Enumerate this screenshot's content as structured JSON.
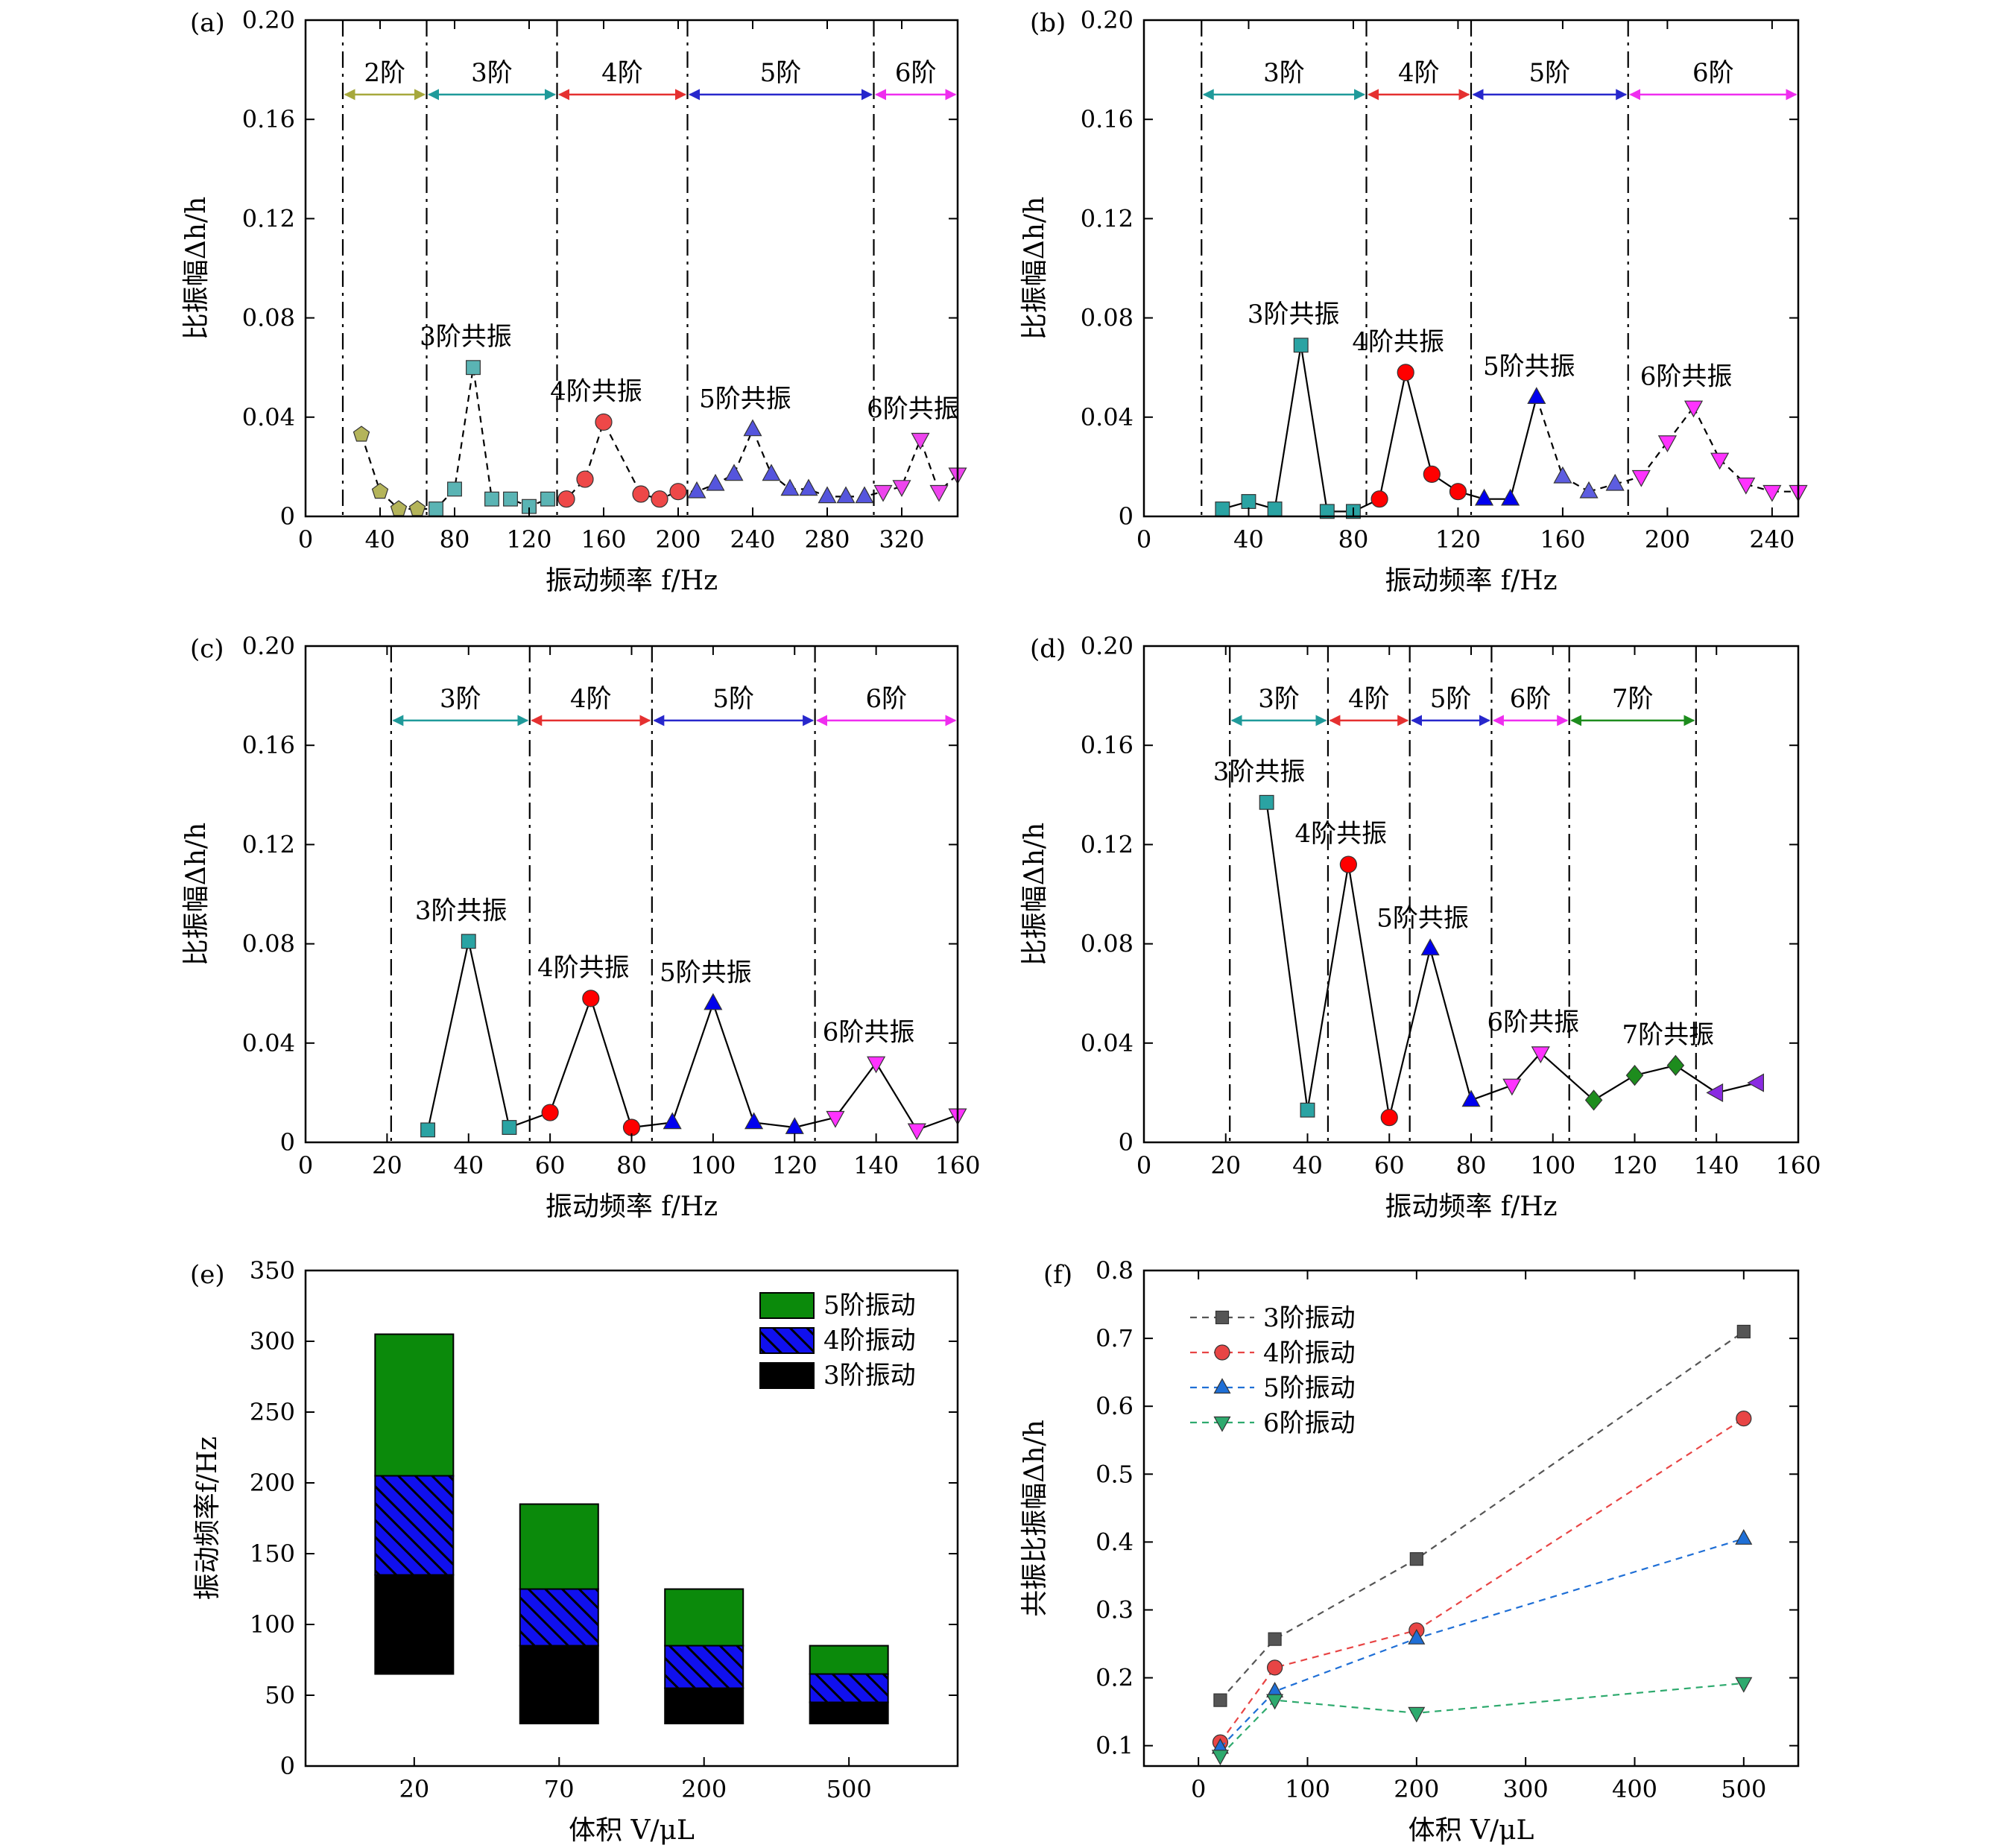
{
  "figure": {
    "panels": [
      "(a)",
      "(b)",
      "(c)",
      "(d)",
      "(e)",
      "(f)"
    ]
  },
  "chart_data": [
    {
      "panel": "(a)",
      "type": "scatter",
      "xlabel": "振动频率 f/Hz",
      "ylabel": "比振幅Δh/h",
      "xlim": [
        0,
        350
      ],
      "ylim": [
        0,
        0.2
      ],
      "xticks": [
        0,
        40,
        80,
        120,
        160,
        200,
        240,
        280,
        320
      ],
      "yticks": [
        0,
        0.04,
        0.08,
        0.12,
        0.16,
        0.2
      ],
      "ytick_labels": [
        "0",
        "0.04",
        "0.08",
        "0.12",
        "0.16",
        "0.20"
      ],
      "line_style": "dashed",
      "boundaries": [
        20,
        65,
        135,
        205,
        305
      ],
      "regions": [
        {
          "label": "2阶",
          "from": 20,
          "to": 65,
          "color": "#a6a83c"
        },
        {
          "label": "3阶",
          "from": 65,
          "to": 135,
          "color": "#1f9a9a"
        },
        {
          "label": "4阶",
          "from": 135,
          "to": 205,
          "color": "#e53030"
        },
        {
          "label": "5阶",
          "from": 205,
          "to": 305,
          "color": "#2727cc"
        },
        {
          "label": "6阶",
          "from": 305,
          "to": 350,
          "color": "#ef2def"
        }
      ],
      "series": [
        {
          "marker": "pentagon",
          "color": "#b4b45a",
          "x": [
            30,
            40,
            50,
            60
          ],
          "y": [
            0.033,
            0.01,
            0.003,
            0.003
          ]
        },
        {
          "marker": "square",
          "color": "#5ab4b4",
          "x": [
            70,
            80,
            90,
            100,
            110,
            120,
            130
          ],
          "y": [
            0.003,
            0.011,
            0.06,
            0.007,
            0.007,
            0.004,
            0.007
          ]
        },
        {
          "marker": "circle",
          "color": "#ee4848",
          "x": [
            140,
            150,
            160,
            180,
            190,
            200
          ],
          "y": [
            0.007,
            0.015,
            0.038,
            0.009,
            0.007,
            0.01
          ]
        },
        {
          "marker": "triangle-up",
          "color": "#5555dd",
          "x": [
            210,
            220,
            230,
            240,
            250,
            260,
            270,
            280,
            290,
            300
          ],
          "y": [
            0.01,
            0.013,
            0.017,
            0.035,
            0.017,
            0.011,
            0.011,
            0.008,
            0.008,
            0.008
          ]
        },
        {
          "marker": "triangle-down",
          "color": "#ee44ee",
          "x": [
            310,
            320,
            330,
            340,
            350
          ],
          "y": [
            0.01,
            0.012,
            0.031,
            0.01,
            0.017
          ]
        }
      ],
      "annotations": [
        {
          "text": "3阶共振",
          "x": 90,
          "y": 0.06
        },
        {
          "text": "4阶共振",
          "x": 160,
          "y": 0.038
        },
        {
          "text": "5阶共振",
          "x": 240,
          "y": 0.035
        },
        {
          "text": "6阶共振",
          "x": 330,
          "y": 0.031
        }
      ]
    },
    {
      "panel": "(b)",
      "type": "line",
      "xlabel": "振动频率 f/Hz",
      "ylabel": "比振幅Δh/h",
      "xlim": [
        0,
        250
      ],
      "ylim": [
        0,
        0.2
      ],
      "xticks": [
        0,
        40,
        80,
        120,
        160,
        200,
        240
      ],
      "yticks": [
        0,
        0.04,
        0.08,
        0.12,
        0.16,
        0.2
      ],
      "ytick_labels": [
        "0",
        "0.04",
        "0.08",
        "0.12",
        "0.16",
        "0.20"
      ],
      "line_style": "solid",
      "boundaries": [
        22,
        85,
        125,
        185
      ],
      "regions": [
        {
          "label": "3阶",
          "from": 22,
          "to": 85,
          "color": "#1f9a9a"
        },
        {
          "label": "4阶",
          "from": 85,
          "to": 125,
          "color": "#e53030"
        },
        {
          "label": "5阶",
          "from": 125,
          "to": 185,
          "color": "#2727cc"
        },
        {
          "label": "6阶",
          "from": 185,
          "to": 250,
          "color": "#ef2def"
        }
      ],
      "series": [
        {
          "marker": "square",
          "color": "#2aa3a3",
          "dash": false,
          "x": [
            30,
            40,
            50,
            60,
            70,
            80
          ],
          "y": [
            0.003,
            0.006,
            0.003,
            0.069,
            0.002,
            0.002
          ]
        },
        {
          "marker": "circle",
          "color": "#ff0000",
          "dash": false,
          "x": [
            90,
            100,
            110,
            120
          ],
          "y": [
            0.007,
            0.058,
            0.017,
            0.01
          ]
        },
        {
          "marker": "triangle-up",
          "color": "#0000ee",
          "dash": false,
          "x": [
            130,
            140,
            150
          ],
          "y": [
            0.007,
            0.007,
            0.048
          ]
        },
        {
          "marker": "triangle-up",
          "color": "#5d5de0",
          "dash": true,
          "x": [
            160,
            170,
            180
          ],
          "y": [
            0.016,
            0.01,
            0.013
          ]
        },
        {
          "marker": "triangle-down",
          "color": "#ff33ff",
          "dash": true,
          "x": [
            190,
            200,
            210,
            220,
            230,
            240,
            250
          ],
          "y": [
            0.016,
            0.03,
            0.044,
            0.023,
            0.013,
            0.01,
            0.01
          ]
        }
      ],
      "annotations": [
        {
          "text": "3阶共振",
          "x": 60,
          "y": 0.069
        },
        {
          "text": "4阶共振",
          "x": 100,
          "y": 0.058
        },
        {
          "text": "5阶共振",
          "x": 150,
          "y": 0.048
        },
        {
          "text": "6阶共振",
          "x": 210,
          "y": 0.044
        }
      ]
    },
    {
      "panel": "(c)",
      "type": "line",
      "xlabel": "振动频率 f/Hz",
      "ylabel": "比振幅Δh/h",
      "xlim": [
        0,
        160
      ],
      "ylim": [
        0,
        0.2
      ],
      "xticks": [
        0,
        20,
        40,
        60,
        80,
        100,
        120,
        140,
        160
      ],
      "yticks": [
        0,
        0.04,
        0.08,
        0.12,
        0.16,
        0.2
      ],
      "ytick_labels": [
        "0",
        "0.04",
        "0.08",
        "0.12",
        "0.16",
        "0.20"
      ],
      "line_style": "solid",
      "boundaries": [
        21,
        55,
        85,
        125
      ],
      "regions": [
        {
          "label": "3阶",
          "from": 21,
          "to": 55,
          "color": "#1f9a9a"
        },
        {
          "label": "4阶",
          "from": 55,
          "to": 85,
          "color": "#e53030"
        },
        {
          "label": "5阶",
          "from": 85,
          "to": 125,
          "color": "#2727cc"
        },
        {
          "label": "6阶",
          "from": 125,
          "to": 160,
          "color": "#ef2def"
        }
      ],
      "series": [
        {
          "marker": "square",
          "color": "#2aa3a3",
          "x": [
            30,
            40,
            50
          ],
          "y": [
            0.005,
            0.081,
            0.006
          ]
        },
        {
          "marker": "circle",
          "color": "#ff0000",
          "x": [
            60,
            70,
            80
          ],
          "y": [
            0.012,
            0.058,
            0.006
          ]
        },
        {
          "marker": "triangle-up",
          "color": "#0000ee",
          "x": [
            90,
            100,
            110,
            120
          ],
          "y": [
            0.008,
            0.056,
            0.008,
            0.006
          ]
        },
        {
          "marker": "triangle-down",
          "color": "#ff33ff",
          "x": [
            130,
            140,
            150,
            160
          ],
          "y": [
            0.01,
            0.032,
            0.005,
            0.011
          ]
        }
      ],
      "annotations": [
        {
          "text": "3阶共振",
          "x": 40,
          "y": 0.081
        },
        {
          "text": "4阶共振",
          "x": 70,
          "y": 0.058
        },
        {
          "text": "5阶共振",
          "x": 100,
          "y": 0.056
        },
        {
          "text": "6阶共振",
          "x": 140,
          "y": 0.032
        }
      ]
    },
    {
      "panel": "(d)",
      "type": "line",
      "xlabel": "振动频率 f/Hz",
      "ylabel": "比振幅Δh/h",
      "xlim": [
        0,
        160
      ],
      "ylim": [
        0,
        0.2
      ],
      "xticks": [
        0,
        20,
        40,
        60,
        80,
        100,
        120,
        140,
        160
      ],
      "yticks": [
        0,
        0.04,
        0.08,
        0.12,
        0.16,
        0.2
      ],
      "ytick_labels": [
        "0",
        "0.04",
        "0.08",
        "0.12",
        "0.16",
        "0.20"
      ],
      "line_style": "solid",
      "boundaries": [
        21,
        45,
        65,
        85,
        104,
        135
      ],
      "regions": [
        {
          "label": "3阶",
          "from": 21,
          "to": 45,
          "color": "#1f9a9a"
        },
        {
          "label": "4阶",
          "from": 45,
          "to": 65,
          "color": "#e53030"
        },
        {
          "label": "5阶",
          "from": 65,
          "to": 85,
          "color": "#2727cc"
        },
        {
          "label": "6阶",
          "from": 85,
          "to": 104,
          "color": "#ef2def"
        },
        {
          "label": "7阶",
          "from": 104,
          "to": 135,
          "color": "#1d8c1d"
        }
      ],
      "series": [
        {
          "marker": "square",
          "color": "#2aa3a3",
          "x": [
            30,
            40
          ],
          "y": [
            0.137,
            0.013
          ]
        },
        {
          "marker": "circle",
          "color": "#ff0000",
          "x": [
            50,
            60
          ],
          "y": [
            0.112,
            0.01
          ]
        },
        {
          "marker": "triangle-up",
          "color": "#0000ee",
          "x": [
            70,
            80
          ],
          "y": [
            0.078,
            0.017
          ]
        },
        {
          "marker": "triangle-down",
          "color": "#ff33ff",
          "x": [
            90,
            97
          ],
          "y": [
            0.023,
            0.036
          ]
        },
        {
          "marker": "diamond",
          "color": "#1d8c1d",
          "x": [
            110,
            120,
            130
          ],
          "y": [
            0.017,
            0.027,
            0.031
          ]
        },
        {
          "marker": "triangle-left",
          "color": "#8a2be2",
          "x": [
            140,
            150
          ],
          "y": [
            0.02,
            0.024
          ]
        }
      ],
      "annotations": [
        {
          "text": "3阶共振",
          "x": 30,
          "y": 0.137
        },
        {
          "text": "4阶共振",
          "x": 50,
          "y": 0.112
        },
        {
          "text": "5阶共振",
          "x": 70,
          "y": 0.078
        },
        {
          "text": "6阶共振",
          "x": 97,
          "y": 0.036
        },
        {
          "text": "7阶共振",
          "x": 130,
          "y": 0.031
        }
      ]
    },
    {
      "panel": "(e)",
      "type": "bar",
      "xlabel": "体积 V/μL",
      "ylabel": "振动频率f/Hz",
      "categories": [
        "20",
        "70",
        "200",
        "500"
      ],
      "ylim": [
        0,
        350
      ],
      "yticks": [
        0,
        50,
        100,
        150,
        200,
        250,
        300,
        350
      ],
      "legend_position": "top-right",
      "series": [
        {
          "name": "3阶振动",
          "color": "#000000",
          "from": [
            65,
            30,
            30,
            30
          ],
          "to": [
            135,
            85,
            55,
            45
          ]
        },
        {
          "name": "4阶振动",
          "color": "#1010ee",
          "pattern": "hatch",
          "from": [
            135,
            85,
            55,
            45
          ],
          "to": [
            205,
            125,
            85,
            65
          ]
        },
        {
          "name": "5阶振动",
          "color": "#0b8a0b",
          "from": [
            205,
            125,
            85,
            65
          ],
          "to": [
            305,
            185,
            125,
            85
          ]
        }
      ]
    },
    {
      "panel": "(f)",
      "type": "line",
      "xlabel": "体积 V/μL",
      "ylabel": "共振比振幅Δh/h",
      "xlim": [
        -50,
        550
      ],
      "ylim": [
        0.07,
        0.8
      ],
      "xticks": [
        0,
        100,
        200,
        300,
        400,
        500
      ],
      "yticks": [
        0.1,
        0.2,
        0.3,
        0.4,
        0.5,
        0.6,
        0.7,
        0.8
      ],
      "line_style": "dashed",
      "legend_position": "top-left",
      "series": [
        {
          "name": "3阶振动",
          "marker": "square",
          "color": "#555555",
          "x": [
            20,
            70,
            200,
            500
          ],
          "y": [
            0.167,
            0.257,
            0.375,
            0.71
          ]
        },
        {
          "name": "4阶振动",
          "marker": "circle",
          "color": "#e84545",
          "x": [
            20,
            70,
            200,
            500
          ],
          "y": [
            0.105,
            0.215,
            0.27,
            0.582
          ]
        },
        {
          "name": "5阶振动",
          "marker": "triangle-up",
          "color": "#1f6fd6",
          "x": [
            20,
            70,
            200,
            500
          ],
          "y": [
            0.097,
            0.18,
            0.258,
            0.405
          ]
        },
        {
          "name": "6阶振动",
          "marker": "triangle-down",
          "color": "#2eaa6e",
          "x": [
            20,
            70,
            200,
            500
          ],
          "y": [
            0.085,
            0.167,
            0.148,
            0.192
          ]
        }
      ]
    }
  ]
}
